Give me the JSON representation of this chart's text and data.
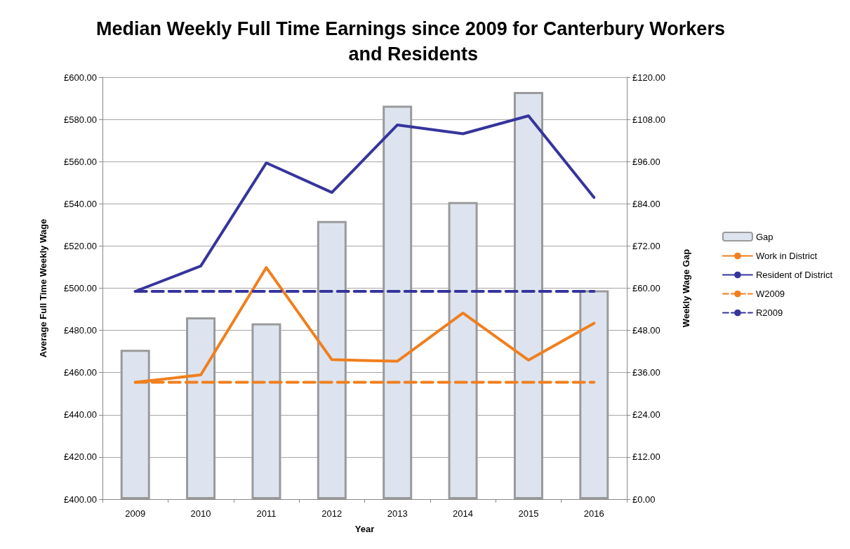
{
  "chart_data": {
    "type": "bar",
    "title": "Median Weekly Full Time Earnings since 2009 for Canterbury Workers and Residents",
    "xlabel": "Year",
    "ylabel": "Average Full Time Weekly Wage",
    "y2label": "Weekly Wage Gap",
    "categories": [
      "2009",
      "2010",
      "2011",
      "2012",
      "2013",
      "2014",
      "2015",
      "2016"
    ],
    "series": [
      {
        "name": "Gap",
        "axis": "y2",
        "color": "#dde4f0",
        "values": [
          42.5,
          51.7,
          50.0,
          79.1,
          111.9,
          84.5,
          115.8,
          59.4
        ]
      },
      {
        "name": "Work in District",
        "type": "line",
        "color": "#f07f1e",
        "line_style": "solid",
        "values": [
          455.4,
          458.9,
          509.8,
          466.1,
          465.4,
          488.2,
          465.9,
          483.4
        ]
      },
      {
        "name": "Resident of District",
        "type": "line",
        "color": "#36359c",
        "line_style": "solid",
        "values": [
          498.5,
          510.5,
          559.4,
          545.4,
          577.4,
          573.2,
          581.7,
          543.0
        ]
      },
      {
        "name": "W2009",
        "type": "line",
        "color": "#f07f1e",
        "line_style": "dashed",
        "values": [
          455.4,
          455.4,
          455.4,
          455.4,
          455.4,
          455.4,
          455.4,
          455.4
        ]
      },
      {
        "name": "R2009",
        "type": "line",
        "color": "#36359c",
        "line_style": "dashed",
        "values": [
          498.5,
          498.5,
          498.5,
          498.5,
          498.5,
          498.5,
          498.5,
          498.5
        ]
      }
    ],
    "ylim": [
      400,
      600
    ],
    "yticks": [
      {
        "value": 400,
        "label": "£400.00"
      },
      {
        "value": 420,
        "label": "£420.00"
      },
      {
        "value": 440,
        "label": "£440.00"
      },
      {
        "value": 460,
        "label": "£460.00"
      },
      {
        "value": 480,
        "label": "£480.00"
      },
      {
        "value": 500,
        "label": "£500.00"
      },
      {
        "value": 520,
        "label": "£520.00"
      },
      {
        "value": 540,
        "label": "£540.00"
      },
      {
        "value": 560,
        "label": "£560.00"
      },
      {
        "value": 580,
        "label": "£580.00"
      },
      {
        "value": 600,
        "label": "£600.00"
      }
    ],
    "y2lim": [
      0,
      120
    ],
    "y2ticks": [
      {
        "value": 0,
        "label": "£0.00"
      },
      {
        "value": 12,
        "label": "£12.00"
      },
      {
        "value": 24,
        "label": "£24.00"
      },
      {
        "value": 36,
        "label": "£36.00"
      },
      {
        "value": 48,
        "label": "£48.00"
      },
      {
        "value": 60,
        "label": "£60.00"
      },
      {
        "value": 72,
        "label": "£72.00"
      },
      {
        "value": 84,
        "label": "£84.00"
      },
      {
        "value": 96,
        "label": "£96.00"
      },
      {
        "value": 108,
        "label": "£108.00"
      },
      {
        "value": 120,
        "label": "£120.00"
      }
    ],
    "grid": "y",
    "legend": "right",
    "marker": "none"
  }
}
